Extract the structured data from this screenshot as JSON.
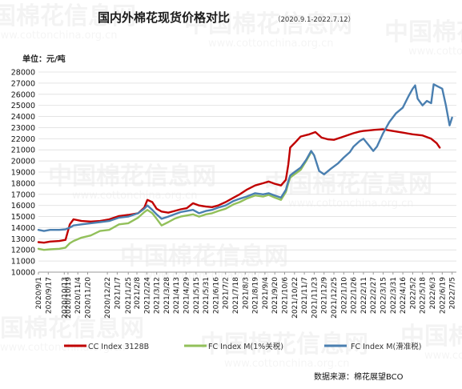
{
  "chart_data": {
    "type": "line",
    "title": "国内外棉花现货价格对比",
    "subtitle": "（2020.9.1-2022.7.12）",
    "ylabel": "单位：元/吨",
    "ylim": [
      10000,
      28000
    ],
    "yticks": [
      10000,
      11000,
      12000,
      13000,
      14000,
      15000,
      16000,
      17000,
      18000,
      19000,
      20000,
      21000,
      22000,
      23000,
      24000,
      25000,
      26000,
      27000,
      28000
    ],
    "xrange": [
      "2020/9/1",
      "2022/7/12"
    ],
    "xticks": [
      "2020/9/1",
      "2020/9/17",
      "2020/10/13",
      "2020/10/19",
      "2020/11/4",
      "2020/11/20",
      "2020/12/22",
      "2021/1/7",
      "2021/1/25",
      "2021/2/8",
      "2021/2/24",
      "2021/3/12",
      "2021/3/28",
      "2021/4/13",
      "2021/4/29",
      "2021/5/15",
      "2021/5/31",
      "2021/6/16",
      "2021/7/2",
      "2021/7/18",
      "2021/8/3",
      "2021/8/19",
      "2021/9/4",
      "2021/9/20",
      "2021/10/6",
      "2021/10/22",
      "2021/11/7",
      "2021/11/23",
      "2021/12/9",
      "2021/12/25",
      "2022/1/10",
      "2022/1/26",
      "2022/2/11",
      "2022/2/27",
      "2022/3/15",
      "2022/3/31",
      "2022/4/16",
      "2022/5/2",
      "2022/5/18",
      "2022/6/3",
      "2022/6/19",
      "2022/7/5"
    ],
    "grid": true,
    "legend_position": "bottom",
    "series": [
      {
        "name": "CC Index 3128B",
        "color": "#c00000",
        "points": [
          [
            "2020/9/1",
            12700
          ],
          [
            "2020/9/10",
            12650
          ],
          [
            "2020/9/20",
            12750
          ],
          [
            "2020/10/5",
            12800
          ],
          [
            "2020/10/15",
            12900
          ],
          [
            "2020/10/22",
            14300
          ],
          [
            "2020/10/28",
            14750
          ],
          [
            "2020/11/10",
            14600
          ],
          [
            "2020/11/25",
            14550
          ],
          [
            "2020/12/10",
            14600
          ],
          [
            "2020/12/25",
            14750
          ],
          [
            "2021/1/10",
            15050
          ],
          [
            "2021/1/25",
            15150
          ],
          [
            "2021/2/10",
            15300
          ],
          [
            "2021/2/20",
            15800
          ],
          [
            "2021/2/25",
            16500
          ],
          [
            "2021/3/5",
            16300
          ],
          [
            "2021/3/12",
            15700
          ],
          [
            "2021/3/20",
            15450
          ],
          [
            "2021/3/31",
            15350
          ],
          [
            "2021/4/10",
            15500
          ],
          [
            "2021/4/20",
            15650
          ],
          [
            "2021/4/30",
            15750
          ],
          [
            "2021/5/10",
            16200
          ],
          [
            "2021/5/20",
            16000
          ],
          [
            "2021/5/31",
            15900
          ],
          [
            "2021/6/10",
            15850
          ],
          [
            "2021/6/20",
            16000
          ],
          [
            "2021/7/2",
            16300
          ],
          [
            "2021/7/15",
            16700
          ],
          [
            "2021/7/25",
            17000
          ],
          [
            "2021/8/5",
            17400
          ],
          [
            "2021/8/19",
            17800
          ],
          [
            "2021/9/1",
            18000
          ],
          [
            "2021/9/10",
            18150
          ],
          [
            "2021/9/20",
            17950
          ],
          [
            "2021/9/30",
            17800
          ],
          [
            "2021/10/8",
            18300
          ],
          [
            "2021/10/12",
            19700
          ],
          [
            "2021/10/15",
            21200
          ],
          [
            "2021/10/22",
            21600
          ],
          [
            "2021/11/1",
            22200
          ],
          [
            "2021/11/15",
            22400
          ],
          [
            "2021/11/25",
            22600
          ],
          [
            "2021/12/5",
            22100
          ],
          [
            "2021/12/15",
            21950
          ],
          [
            "2021/12/25",
            21900
          ],
          [
            "2022/1/5",
            22100
          ],
          [
            "2022/1/15",
            22300
          ],
          [
            "2022/1/26",
            22500
          ],
          [
            "2022/2/5",
            22650
          ],
          [
            "2022/2/11",
            22700
          ],
          [
            "2022/2/20",
            22750
          ],
          [
            "2022/3/1",
            22800
          ],
          [
            "2022/3/15",
            22850
          ],
          [
            "2022/3/25",
            22750
          ],
          [
            "2022/4/5",
            22650
          ],
          [
            "2022/4/16",
            22550
          ],
          [
            "2022/5/2",
            22400
          ],
          [
            "2022/5/18",
            22300
          ],
          [
            "2022/6/1",
            22000
          ],
          [
            "2022/6/10",
            21600
          ],
          [
            "2022/6/15",
            21200
          ]
        ]
      },
      {
        "name": "FC Index M(1%关税)",
        "color": "#92c05a",
        "points": [
          [
            "2020/9/1",
            12100
          ],
          [
            "2020/9/10",
            12000
          ],
          [
            "2020/9/20",
            12050
          ],
          [
            "2020/10/5",
            12100
          ],
          [
            "2020/10/15",
            12200
          ],
          [
            "2020/10/22",
            12600
          ],
          [
            "2020/10/28",
            12800
          ],
          [
            "2020/11/10",
            13100
          ],
          [
            "2020/11/25",
            13300
          ],
          [
            "2020/12/10",
            13700
          ],
          [
            "2020/12/25",
            13800
          ],
          [
            "2021/1/10",
            14300
          ],
          [
            "2021/1/25",
            14400
          ],
          [
            "2021/2/10",
            14900
          ],
          [
            "2021/2/20",
            15400
          ],
          [
            "2021/2/25",
            15600
          ],
          [
            "2021/3/5",
            15300
          ],
          [
            "2021/3/12",
            14800
          ],
          [
            "2021/3/20",
            14200
          ],
          [
            "2021/3/31",
            14500
          ],
          [
            "2021/4/10",
            14800
          ],
          [
            "2021/4/20",
            15000
          ],
          [
            "2021/4/30",
            15100
          ],
          [
            "2021/5/10",
            15200
          ],
          [
            "2021/5/20",
            15000
          ],
          [
            "2021/5/31",
            15200
          ],
          [
            "2021/6/10",
            15300
          ],
          [
            "2021/6/20",
            15500
          ],
          [
            "2021/7/2",
            15700
          ],
          [
            "2021/7/15",
            16100
          ],
          [
            "2021/7/25",
            16300
          ],
          [
            "2021/8/5",
            16600
          ],
          [
            "2021/8/19",
            16900
          ],
          [
            "2021/9/1",
            16800
          ],
          [
            "2021/9/10",
            16950
          ],
          [
            "2021/9/20",
            16700
          ],
          [
            "2021/9/30",
            16500
          ],
          [
            "2021/10/8",
            17200
          ],
          [
            "2021/10/12",
            18000
          ],
          [
            "2021/10/15",
            18500
          ],
          [
            "2021/10/22",
            18800
          ],
          [
            "2021/11/1",
            19200
          ],
          [
            "2021/11/10",
            20000
          ],
          [
            "2021/11/18",
            20800
          ]
        ]
      },
      {
        "name": "FC Index M(滑准税)",
        "color": "#4a7fb0",
        "points": [
          [
            "2020/9/1",
            13800
          ],
          [
            "2020/9/10",
            13700
          ],
          [
            "2020/9/20",
            13800
          ],
          [
            "2020/10/5",
            13800
          ],
          [
            "2020/10/15",
            13850
          ],
          [
            "2020/10/22",
            14000
          ],
          [
            "2020/10/28",
            14200
          ],
          [
            "2020/11/10",
            14300
          ],
          [
            "2020/11/25",
            14400
          ],
          [
            "2020/12/10",
            14500
          ],
          [
            "2020/12/25",
            14600
          ],
          [
            "2021/1/10",
            14900
          ],
          [
            "2021/1/25",
            15000
          ],
          [
            "2021/2/10",
            15300
          ],
          [
            "2021/2/20",
            15700
          ],
          [
            "2021/2/25",
            16000
          ],
          [
            "2021/3/5",
            15600
          ],
          [
            "2021/3/12",
            15200
          ],
          [
            "2021/3/20",
            14800
          ],
          [
            "2021/3/31",
            15000
          ],
          [
            "2021/4/10",
            15200
          ],
          [
            "2021/4/20",
            15400
          ],
          [
            "2021/4/30",
            15500
          ],
          [
            "2021/5/10",
            15600
          ],
          [
            "2021/5/20",
            15300
          ],
          [
            "2021/5/31",
            15500
          ],
          [
            "2021/6/10",
            15600
          ],
          [
            "2021/6/20",
            15800
          ],
          [
            "2021/7/2",
            16000
          ],
          [
            "2021/7/15",
            16400
          ],
          [
            "2021/7/25",
            16600
          ],
          [
            "2021/8/5",
            16800
          ],
          [
            "2021/8/19",
            17100
          ],
          [
            "2021/9/1",
            17000
          ],
          [
            "2021/9/10",
            17100
          ],
          [
            "2021/9/20",
            16900
          ],
          [
            "2021/9/30",
            16700
          ],
          [
            "2021/10/8",
            17400
          ],
          [
            "2021/10/12",
            18200
          ],
          [
            "2021/10/15",
            18700
          ],
          [
            "2021/10/22",
            19000
          ],
          [
            "2021/11/1",
            19400
          ],
          [
            "2021/11/10",
            20100
          ],
          [
            "2021/11/18",
            20900
          ],
          [
            "2021/11/23",
            20500
          ],
          [
            "2021/12/1",
            19100
          ],
          [
            "2021/12/9",
            18800
          ],
          [
            "2021/12/20",
            19300
          ],
          [
            "2022/1/1",
            19800
          ],
          [
            "2022/1/10",
            20300
          ],
          [
            "2022/1/20",
            20800
          ],
          [
            "2022/1/26",
            21300
          ],
          [
            "2022/2/5",
            21800
          ],
          [
            "2022/2/11",
            22000
          ],
          [
            "2022/2/20",
            21400
          ],
          [
            "2022/2/27",
            20900
          ],
          [
            "2022/3/5",
            21300
          ],
          [
            "2022/3/15",
            22500
          ],
          [
            "2022/3/25",
            23500
          ],
          [
            "2022/4/5",
            24300
          ],
          [
            "2022/4/16",
            24800
          ],
          [
            "2022/4/25",
            25800
          ],
          [
            "2022/5/2",
            26500
          ],
          [
            "2022/5/6",
            26800
          ],
          [
            "2022/5/10",
            25600
          ],
          [
            "2022/5/18",
            25000
          ],
          [
            "2022/5/25",
            25400
          ],
          [
            "2022/6/1",
            25200
          ],
          [
            "2022/6/5",
            26900
          ],
          [
            "2022/6/12",
            26700
          ],
          [
            "2022/6/19",
            26500
          ],
          [
            "2022/6/25",
            25000
          ],
          [
            "2022/7/1",
            23200
          ],
          [
            "2022/7/5",
            23900
          ]
        ]
      }
    ]
  },
  "source": "数据来源：棉花展望BCO",
  "watermark": {
    "text": "中国棉花信息网",
    "url": "www.cottonchina.org.cn"
  }
}
